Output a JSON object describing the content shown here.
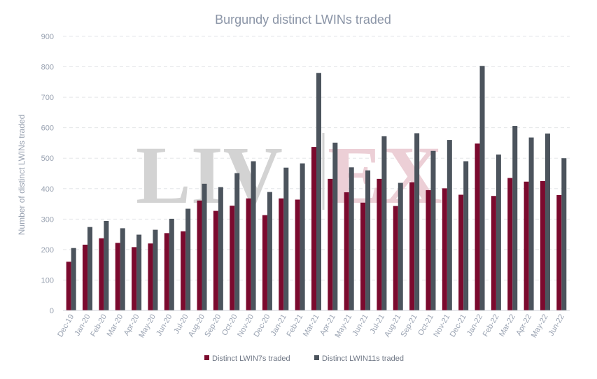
{
  "chart_data": {
    "type": "bar",
    "title": "Burgundy distinct LWINs traded",
    "xlabel": "",
    "ylabel": "Number of distinct LWINs traded",
    "ylim": [
      0,
      900
    ],
    "yticks": [
      0,
      100,
      200,
      300,
      400,
      500,
      600,
      700,
      800,
      900
    ],
    "grid": true,
    "legend_position": "bottom",
    "categories": [
      "Dec-19",
      "Jan-20",
      "Feb-20",
      "Mar-20",
      "Apr-20",
      "May-20",
      "Jun-20",
      "Jul-20",
      "Aug-20",
      "Sep-20",
      "Oct-20",
      "Nov-20",
      "Dec-20",
      "Jan-21",
      "Feb-21",
      "Mar-21",
      "Apr-21",
      "May-21",
      "Jun-21",
      "Jul-21",
      "Aug-21",
      "Sep-21",
      "Oct-21",
      "Nov-21",
      "Dec-21",
      "Jan-22",
      "Feb-22",
      "Mar-22",
      "Apr-22",
      "May-22",
      "Jun-22"
    ],
    "series": [
      {
        "name": "Distinct LWIN7s traded",
        "color": "#7b0a2e",
        "values": [
          160,
          216,
          237,
          222,
          208,
          220,
          254,
          260,
          361,
          327,
          344,
          368,
          313,
          368,
          364,
          537,
          432,
          388,
          354,
          432,
          343,
          421,
          395,
          401,
          380,
          548,
          376,
          435,
          423,
          425,
          379
        ]
      },
      {
        "name": "Distinct LWIN11s traded",
        "color": "#4c545d",
        "values": [
          205,
          274,
          294,
          270,
          249,
          265,
          301,
          334,
          416,
          405,
          451,
          490,
          389,
          469,
          483,
          780,
          551,
          470,
          460,
          572,
          419,
          582,
          524,
          560,
          490,
          803,
          512,
          606,
          568,
          581,
          500
        ]
      }
    ]
  },
  "watermark": {
    "left": "LIV",
    "right": "EX"
  }
}
